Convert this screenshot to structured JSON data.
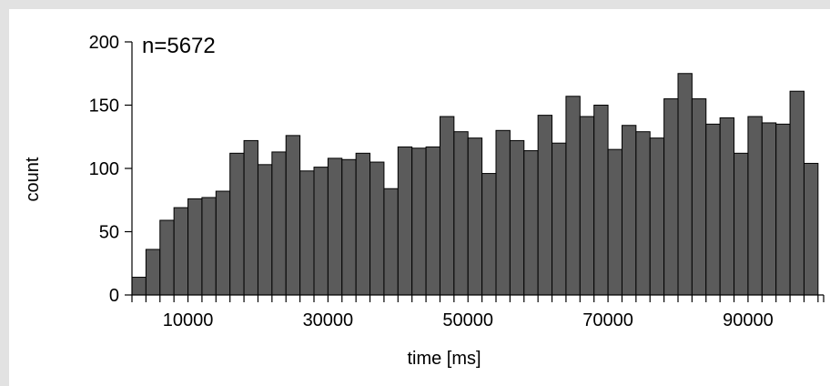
{
  "chart_data": {
    "type": "bar",
    "title": "",
    "annotation": "n=5672",
    "xlabel": "time [ms]",
    "ylabel": "count",
    "ylim": [
      0,
      200
    ],
    "yticks": [
      0,
      50,
      100,
      150,
      200
    ],
    "xlim": [
      2000,
      100800
    ],
    "xticks_labeled": [
      10000,
      30000,
      50000,
      70000,
      90000
    ],
    "bin_start": 3000,
    "bin_width": 2000,
    "values": [
      14,
      36,
      59,
      69,
      76,
      77,
      82,
      112,
      122,
      103,
      113,
      126,
      98,
      101,
      108,
      107,
      112,
      105,
      84,
      117,
      116,
      117,
      141,
      129,
      124,
      96,
      130,
      122,
      114,
      142,
      120,
      157,
      141,
      150,
      115,
      134,
      129,
      124,
      155,
      175,
      155,
      135,
      140,
      112,
      141,
      136,
      135,
      161,
      104
    ],
    "grid": false,
    "bar_color": "#5b5b5b"
  }
}
